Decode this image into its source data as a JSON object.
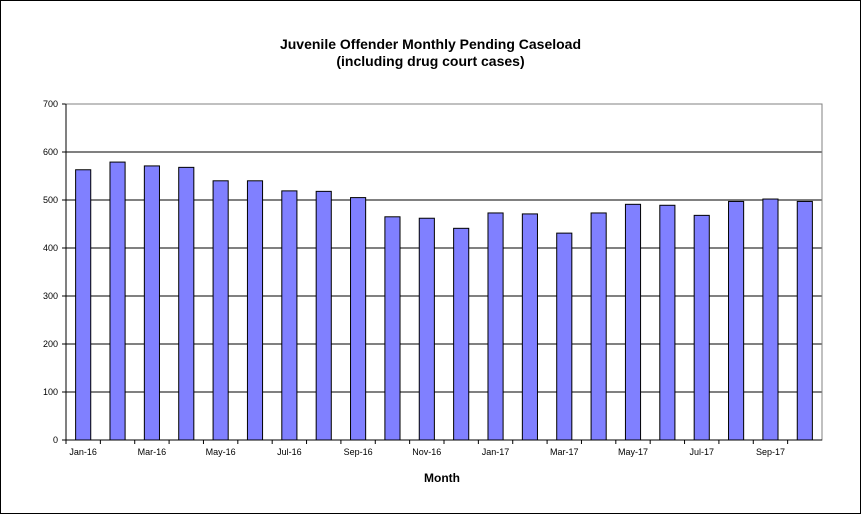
{
  "chart_data": {
    "type": "bar",
    "title": "Juvenile Offender Monthly Pending Caseload",
    "subtitle": "(including drug court cases)",
    "xlabel": "Month",
    "ylabel": "",
    "ylim": [
      0,
      700
    ],
    "yticks": [
      "0",
      "100",
      "200",
      "300",
      "400",
      "500",
      "600",
      "700"
    ],
    "grid": true,
    "legend": "none",
    "bar_color": "#8080ff",
    "categories": [
      "Jan-16",
      "Feb-16",
      "Mar-16",
      "Apr-16",
      "May-16",
      "Jun-16",
      "Jul-16",
      "Aug-16",
      "Sep-16",
      "Oct-16",
      "Nov-16",
      "Dec-16",
      "Jan-17",
      "Feb-17",
      "Mar-17",
      "Apr-17",
      "May-17",
      "Jun-17",
      "Jul-17",
      "Aug-17",
      "Sep-17",
      "Oct-17"
    ],
    "xtick_labels": [
      "Jan-16",
      "",
      "Mar-16",
      "",
      "May-16",
      "",
      "Jul-16",
      "",
      "Sep-16",
      "",
      "Nov-16",
      "",
      "Jan-17",
      "",
      "Mar-17",
      "",
      "May-17",
      "",
      "Jul-17",
      "",
      "Sep-17",
      ""
    ],
    "values": [
      563,
      579,
      571,
      568,
      540,
      540,
      519,
      518,
      505,
      465,
      462,
      441,
      473,
      471,
      431,
      473,
      491,
      489,
      468,
      497,
      502,
      497
    ]
  }
}
